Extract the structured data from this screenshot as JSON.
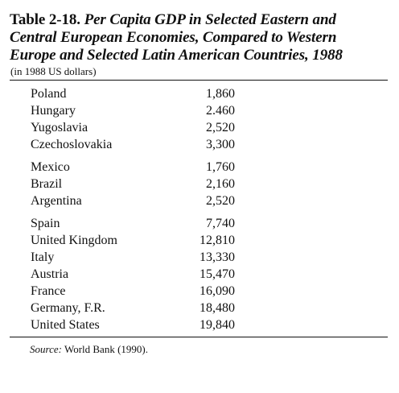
{
  "table": {
    "label": "Table 2-18.",
    "caption_line1": "Per Capita GDP in Selected Eastern and",
    "caption_line2": "Central European Economies, Compared to Western",
    "caption_line3": "Europe and Selected Latin American Countries, 1988",
    "subtitle": "(in 1988 US dollars)",
    "groups": [
      {
        "rows": [
          {
            "country": "Poland",
            "value": "1,860"
          },
          {
            "country": "Hungary",
            "value": "2.460"
          },
          {
            "country": "Yugoslavia",
            "value": "2,520"
          },
          {
            "country": "Czechoslovakia",
            "value": "3,300"
          }
        ]
      },
      {
        "rows": [
          {
            "country": "Mexico",
            "value": "1,760"
          },
          {
            "country": "Brazil",
            "value": "2,160"
          },
          {
            "country": "Argentina",
            "value": "2,520"
          }
        ]
      },
      {
        "rows": [
          {
            "country": "Spain",
            "value": "7,740"
          },
          {
            "country": "United Kingdom",
            "value": "12,810"
          },
          {
            "country": "Italy",
            "value": "13,330"
          },
          {
            "country": "Austria",
            "value": "15,470"
          },
          {
            "country": "France",
            "value": "16,090"
          },
          {
            "country": "Germany, F.R.",
            "value": "18,480"
          },
          {
            "country": "United States",
            "value": "19,840"
          }
        ]
      }
    ],
    "source_label": "Source:",
    "source_text": "World Bank (1990)."
  }
}
